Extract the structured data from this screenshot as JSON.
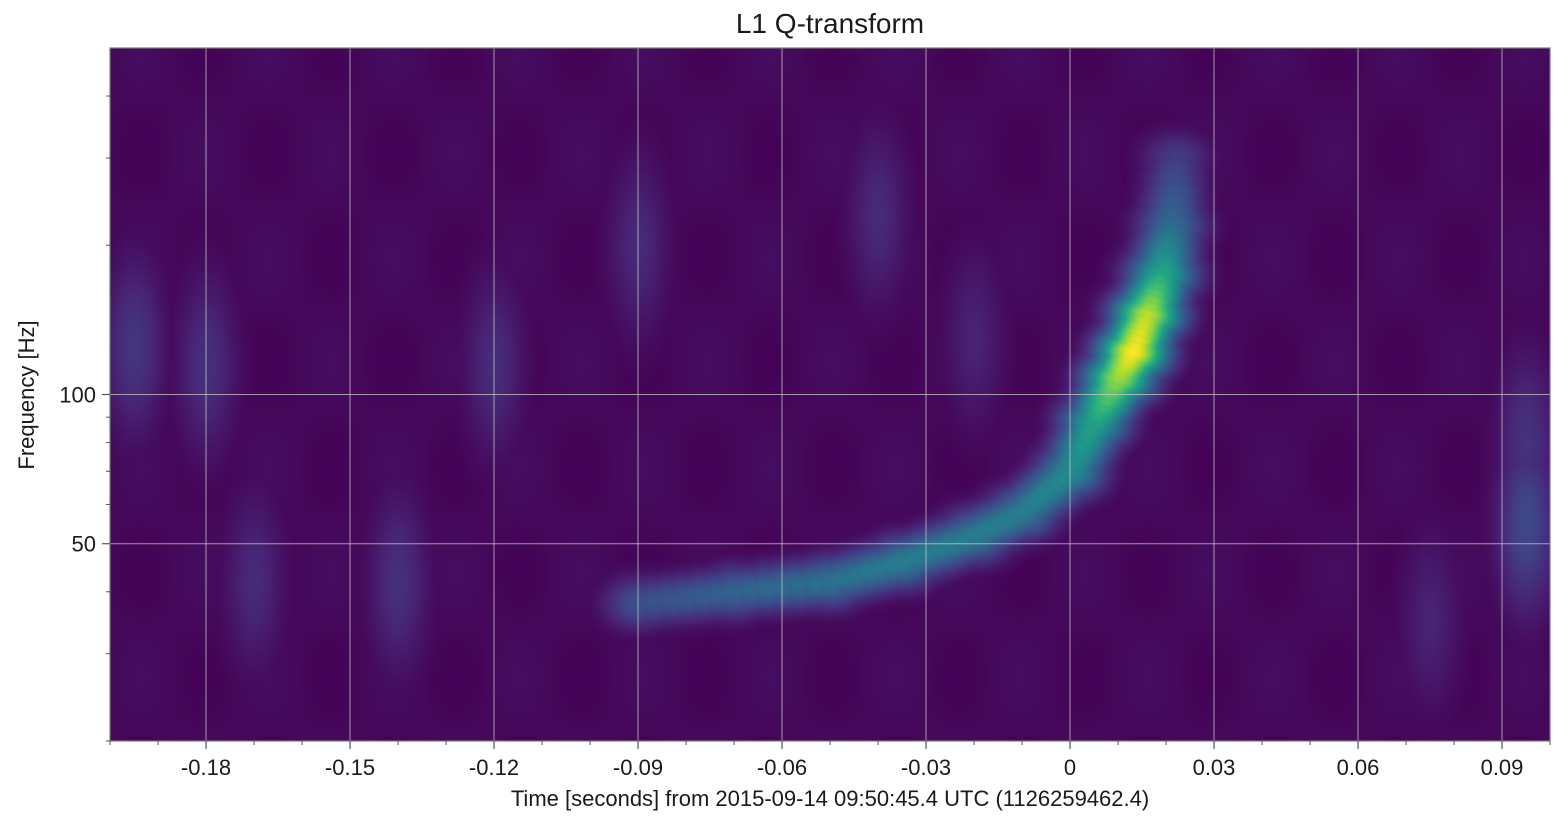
{
  "chart_data": {
    "type": "heatmap",
    "title": "L1 Q-transform",
    "xlabel": "Time [seconds] from 2015-09-14 09:50:45.4 UTC (1126259462.4)",
    "ylabel": "Frequency [Hz]",
    "xlim": [
      -0.2,
      0.1
    ],
    "ylim": [
      20,
      500
    ],
    "yscale": "log",
    "x_ticks": [
      -0.18,
      -0.15,
      -0.12,
      -0.09,
      -0.06,
      -0.03,
      0,
      0.03,
      0.06,
      0.09
    ],
    "x_tick_labels": [
      "-0.18",
      "-0.15",
      "-0.12",
      "-0.09",
      "-0.06",
      "-0.03",
      "0",
      "0.03",
      "0.06",
      "0.09"
    ],
    "y_ticks": [
      50,
      100
    ],
    "y_tick_labels": [
      "50",
      "100"
    ],
    "grid": true,
    "colormap": "viridis",
    "value_range": [
      0,
      1
    ],
    "chirp_track": [
      {
        "t": -0.09,
        "f": 38,
        "v": 0.25
      },
      {
        "t": -0.07,
        "f": 40,
        "v": 0.32
      },
      {
        "t": -0.05,
        "f": 42,
        "v": 0.38
      },
      {
        "t": -0.035,
        "f": 46,
        "v": 0.42
      },
      {
        "t": -0.02,
        "f": 52,
        "v": 0.42
      },
      {
        "t": -0.01,
        "f": 58,
        "v": 0.42
      },
      {
        "t": 0,
        "f": 70,
        "v": 0.48
      },
      {
        "t": 0.005,
        "f": 88,
        "v": 0.58
      },
      {
        "t": 0.01,
        "f": 108,
        "v": 0.85
      },
      {
        "t": 0.013,
        "f": 122,
        "v": 1.0
      },
      {
        "t": 0.016,
        "f": 145,
        "v": 0.9
      },
      {
        "t": 0.019,
        "f": 175,
        "v": 0.6
      },
      {
        "t": 0.021,
        "f": 220,
        "v": 0.35
      },
      {
        "t": 0.022,
        "f": 300,
        "v": 0.18
      }
    ],
    "background_features": [
      {
        "t": -0.195,
        "f": 125,
        "v": 0.16
      },
      {
        "t": -0.18,
        "f": 115,
        "v": 0.14
      },
      {
        "t": -0.12,
        "f": 115,
        "v": 0.13
      },
      {
        "t": -0.09,
        "f": 200,
        "v": 0.12
      },
      {
        "t": -0.04,
        "f": 230,
        "v": 0.12
      },
      {
        "t": -0.02,
        "f": 130,
        "v": 0.1
      },
      {
        "t": 0.075,
        "f": 35,
        "v": 0.1
      },
      {
        "t": 0.095,
        "f": 55,
        "v": 0.22
      },
      {
        "t": 0.095,
        "f": 80,
        "v": 0.15
      },
      {
        "t": -0.14,
        "f": 42,
        "v": 0.14
      },
      {
        "t": -0.17,
        "f": 42,
        "v": 0.12
      }
    ]
  }
}
